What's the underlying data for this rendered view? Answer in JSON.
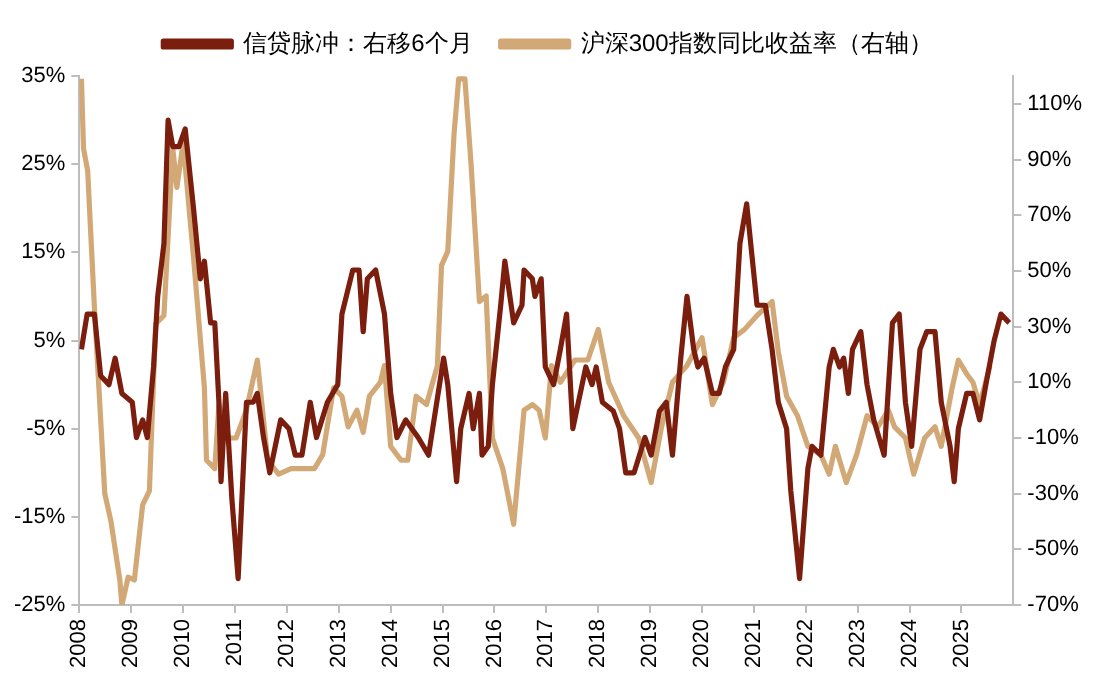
{
  "chart_data": {
    "type": "line",
    "legend": "top",
    "grid": false,
    "marker": "none",
    "line_style": "solid",
    "xlim": [
      2008,
      2026
    ],
    "xticks": [
      2008,
      2009,
      2010,
      2011,
      2012,
      2013,
      2014,
      2015,
      2016,
      2017,
      2018,
      2019,
      2020,
      2021,
      2022,
      2023,
      2024,
      2025
    ],
    "ylim": [
      -25,
      35
    ],
    "yticks": [
      {
        "value": -25,
        "label": "-25%"
      },
      {
        "value": -15,
        "label": "-15%"
      },
      {
        "value": -5,
        "label": "-5%"
      },
      {
        "value": 5,
        "label": "5%"
      },
      {
        "value": 15,
        "label": "15%"
      },
      {
        "value": 25,
        "label": "25%"
      },
      {
        "value": 35,
        "label": "35%"
      }
    ],
    "y2lim": [
      -70,
      120
    ],
    "y2ticks": [
      {
        "value": -70,
        "label": "-70%"
      },
      {
        "value": -50,
        "label": "-50%"
      },
      {
        "value": -30,
        "label": "-30%"
      },
      {
        "value": -10,
        "label": "-10%"
      },
      {
        "value": 10,
        "label": "10%"
      },
      {
        "value": 30,
        "label": "30%"
      },
      {
        "value": 50,
        "label": "50%"
      },
      {
        "value": 70,
        "label": "70%"
      },
      {
        "value": 90,
        "label": "90%"
      },
      {
        "value": 110,
        "label": "110%"
      }
    ],
    "series": [
      {
        "name": "信贷脉冲：右移6个月",
        "color": "#7b1e0e",
        "x": [
          2008.04,
          2008.15,
          2008.29,
          2008.41,
          2008.57,
          2008.69,
          2008.82,
          2009.02,
          2009.1,
          2009.22,
          2009.31,
          2009.43,
          2009.51,
          2009.63,
          2009.71,
          2009.8,
          2009.92,
          2010.04,
          2010.2,
          2010.33,
          2010.41,
          2010.53,
          2010.61,
          2010.69,
          2010.73,
          2010.82,
          2010.94,
          2011.06,
          2011.22,
          2011.35,
          2011.43,
          2011.55,
          2011.67,
          2011.88,
          2012.04,
          2012.16,
          2012.29,
          2012.45,
          2012.57,
          2012.78,
          2012.98,
          2013.06,
          2013.27,
          2013.39,
          2013.47,
          2013.55,
          2013.71,
          2013.88,
          2014.0,
          2014.12,
          2014.29,
          2014.41,
          2014.53,
          2014.73,
          2015.02,
          2015.1,
          2015.27,
          2015.35,
          2015.51,
          2015.59,
          2015.71,
          2015.76,
          2015.88,
          2015.96,
          2016.12,
          2016.2,
          2016.37,
          2016.53,
          2016.57,
          2016.73,
          2016.78,
          2016.9,
          2016.98,
          2017.14,
          2017.27,
          2017.39,
          2017.51,
          2017.76,
          2017.88,
          2017.96,
          2018.08,
          2018.29,
          2018.41,
          2018.53,
          2018.69,
          2018.9,
          2019.02,
          2019.18,
          2019.31,
          2019.43,
          2019.59,
          2019.71,
          2019.84,
          2019.92,
          2020.04,
          2020.2,
          2020.33,
          2020.45,
          2020.61,
          2020.73,
          2020.86,
          2021.06,
          2021.22,
          2021.35,
          2021.47,
          2021.63,
          2021.71,
          2021.88,
          2022.04,
          2022.12,
          2022.29,
          2022.45,
          2022.53,
          2022.65,
          2022.73,
          2022.82,
          2022.9,
          2023.06,
          2023.18,
          2023.31,
          2023.51,
          2023.67,
          2023.8,
          2023.92,
          2024.04,
          2024.2,
          2024.33,
          2024.49,
          2024.61,
          2024.78,
          2024.86,
          2024.94,
          2025.1,
          2025.22,
          2025.35,
          2025.47,
          2025.63,
          2025.76,
          2025.92
        ],
        "values": [
          4,
          8,
          8,
          1,
          0,
          3,
          -1,
          -2,
          -6,
          -4,
          -6,
          2,
          10,
          16,
          30,
          27,
          27,
          29,
          20,
          12,
          14,
          7,
          7,
          -2,
          -11,
          -1,
          -13,
          -22,
          -2,
          -2,
          -1,
          -6,
          -10,
          -4,
          -5,
          -8,
          -8,
          -2,
          -6,
          -2,
          0,
          8,
          13,
          13,
          6,
          12,
          13,
          8,
          -1,
          -6,
          -4,
          -5,
          -6,
          -8,
          3,
          0,
          -11,
          -5,
          -1,
          -5,
          -1,
          -8,
          -7,
          0,
          9,
          14,
          7,
          9,
          13,
          12,
          10,
          12,
          2,
          0,
          4,
          8,
          -5,
          2,
          0,
          2,
          -2,
          -3,
          -5,
          -10,
          -10,
          -6,
          -8,
          -3,
          -2,
          -8,
          3,
          10,
          4,
          2,
          3,
          -1,
          -1,
          2,
          4,
          16,
          20.5,
          9,
          9,
          4,
          -2,
          -5,
          -12,
          -22,
          -9.5,
          -7,
          -8,
          2,
          4,
          2,
          3,
          -1,
          4,
          6,
          0,
          -4,
          -8,
          7,
          8,
          -2,
          -7,
          4,
          6,
          6,
          -2,
          -7,
          -11,
          -5,
          -1,
          -1,
          -4,
          0,
          5,
          8,
          7
        ]
      },
      {
        "name": "沪深300指数同比收益率（右轴）",
        "color": "#d2a877",
        "axis": "y2",
        "x": [
          2008.04,
          2008.08,
          2008.16,
          2008.29,
          2008.49,
          2008.61,
          2008.78,
          2008.82,
          2008.94,
          2009.06,
          2009.22,
          2009.35,
          2009.47,
          2009.63,
          2009.8,
          2009.88,
          2010.0,
          2010.2,
          2010.41,
          2010.45,
          2010.61,
          2010.69,
          2010.86,
          2011.02,
          2011.22,
          2011.43,
          2011.63,
          2011.84,
          2012.08,
          2012.29,
          2012.53,
          2012.69,
          2012.9,
          2013.06,
          2013.18,
          2013.35,
          2013.47,
          2013.59,
          2013.8,
          2013.88,
          2014.0,
          2014.2,
          2014.33,
          2014.49,
          2014.69,
          2014.9,
          2014.98,
          2015.1,
          2015.22,
          2015.31,
          2015.43,
          2015.55,
          2015.71,
          2015.84,
          2015.96,
          2016.16,
          2016.37,
          2016.57,
          2016.73,
          2016.86,
          2016.98,
          2017.1,
          2017.27,
          2017.55,
          2017.8,
          2018.0,
          2018.2,
          2018.49,
          2018.78,
          2019.02,
          2019.22,
          2019.43,
          2019.71,
          2020.0,
          2020.2,
          2020.41,
          2020.61,
          2020.82,
          2021.06,
          2021.35,
          2021.47,
          2021.63,
          2021.84,
          2022.04,
          2022.29,
          2022.45,
          2022.57,
          2022.78,
          2022.98,
          2023.18,
          2023.39,
          2023.59,
          2023.71,
          2023.92,
          2024.08,
          2024.29,
          2024.49,
          2024.61,
          2024.82,
          2024.94,
          2025.1,
          2025.22,
          2025.35,
          2025.55
        ],
        "values": [
          119,
          94,
          86,
          37,
          -30,
          -40,
          -61,
          -70,
          -60,
          -61,
          -34,
          -29,
          31,
          34,
          94,
          80,
          96,
          55,
          8,
          -18,
          -21,
          2,
          -10,
          -10,
          0,
          18,
          -18,
          -23,
          -21,
          -21,
          -21,
          -16,
          8,
          5,
          -6,
          0,
          -8,
          5,
          10,
          16,
          -13,
          -18,
          -18,
          5,
          2,
          16,
          52,
          57,
          99,
          119,
          119,
          88,
          39,
          41,
          -10,
          -21,
          -41,
          0,
          2,
          0,
          -10,
          16,
          10,
          18,
          18,
          29,
          10,
          -2,
          -10,
          -26,
          -6,
          10,
          16,
          26,
          2,
          10,
          26,
          29,
          34,
          39,
          21,
          5,
          -2,
          -13,
          -16,
          -23,
          -13,
          -26,
          -16,
          -2,
          -6,
          0,
          -6,
          -10,
          -23,
          -10,
          -6,
          -13,
          8,
          18,
          13,
          10,
          2,
          16
        ]
      }
    ]
  }
}
